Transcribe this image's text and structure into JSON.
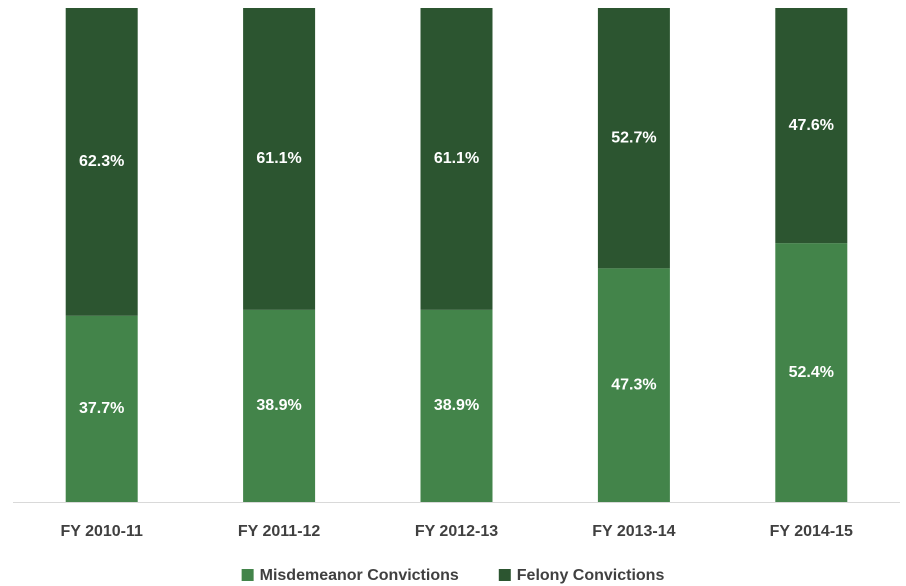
{
  "chart_data": {
    "type": "stacked_bar",
    "categories": [
      "FY 2010-11",
      "FY 2011-12",
      "FY 2012-13",
      "FY 2013-14",
      "FY 2014-15"
    ],
    "series": [
      {
        "name": "Misdemeanor Convictions",
        "color": "#43844a",
        "values": [
          37.7,
          38.9,
          38.9,
          47.3,
          52.4
        ],
        "value_labels": [
          "37.7%",
          "38.9%",
          "38.9%",
          "47.3%",
          "52.4%"
        ]
      },
      {
        "name": "Felony Convictions",
        "color": "#2c5530",
        "values": [
          62.3,
          61.1,
          61.1,
          52.7,
          47.6
        ],
        "value_labels": [
          "62.3%",
          "61.1%",
          "61.1%",
          "52.7%",
          "47.6%"
        ]
      }
    ],
    "legend": "bottom"
  }
}
